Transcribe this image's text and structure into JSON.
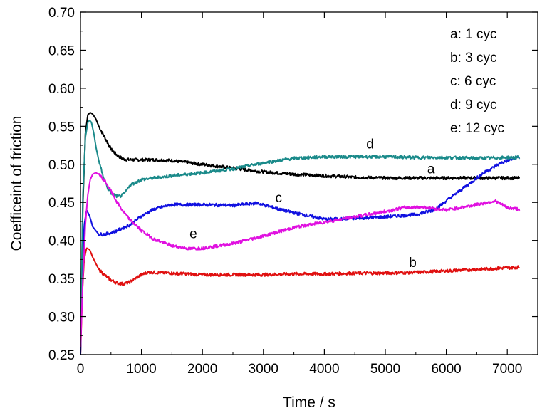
{
  "chart_data": {
    "type": "line",
    "title": "",
    "xlabel": "Time / s",
    "ylabel": "Coefficeint of friction",
    "xlim": [
      0,
      7500
    ],
    "ylim": [
      0.25,
      0.7
    ],
    "xticks": [
      0,
      1000,
      2000,
      3000,
      4000,
      5000,
      6000,
      7000
    ],
    "yticks": [
      0.25,
      0.3,
      0.35,
      0.4,
      0.45,
      0.5,
      0.55,
      0.6,
      0.65,
      0.7
    ],
    "xtick_labels": [
      "0",
      "1000",
      "2000",
      "3000",
      "4000",
      "5000",
      "6000",
      "7000"
    ],
    "ytick_labels": [
      "0.25",
      "0.30",
      "0.35",
      "0.40",
      "0.45",
      "0.50",
      "0.55",
      "0.60",
      "0.65",
      "0.70"
    ],
    "grid": false,
    "legend_position": "top-right",
    "legend": [
      {
        "text": "a: 1 cyc"
      },
      {
        "text": "b: 3 cyc"
      },
      {
        "text": "c: 6 cyc"
      },
      {
        "text": "d: 9 cyc"
      },
      {
        "text": "e: 12 cyc"
      }
    ],
    "series": [
      {
        "label": "a",
        "color": "#000000",
        "label_at": [
          5750,
          0.488
        ],
        "x": [
          0,
          40,
          80,
          120,
          160,
          200,
          250,
          300,
          400,
          500,
          600,
          700,
          800,
          1000,
          1200,
          1500,
          2000,
          2500,
          3000,
          3500,
          4000,
          4500,
          5000,
          5500,
          6000,
          6500,
          7000,
          7200
        ],
        "y": [
          0.25,
          0.45,
          0.54,
          0.565,
          0.568,
          0.566,
          0.56,
          0.55,
          0.535,
          0.52,
          0.512,
          0.507,
          0.506,
          0.506,
          0.506,
          0.505,
          0.5,
          0.495,
          0.49,
          0.487,
          0.485,
          0.483,
          0.482,
          0.482,
          0.482,
          0.482,
          0.482,
          0.482
        ]
      },
      {
        "label": "b",
        "color": "#e01010",
        "label_at": [
          5450,
          0.365
        ],
        "x": [
          0,
          30,
          60,
          100,
          150,
          200,
          300,
          400,
          500,
          600,
          700,
          800,
          900,
          1000,
          1100,
          1200,
          1500,
          2000,
          2500,
          3000,
          3500,
          4000,
          4500,
          5000,
          5500,
          6000,
          6500,
          7000,
          7200
        ],
        "y": [
          0.25,
          0.33,
          0.375,
          0.39,
          0.388,
          0.378,
          0.362,
          0.354,
          0.348,
          0.344,
          0.343,
          0.345,
          0.35,
          0.355,
          0.358,
          0.358,
          0.357,
          0.355,
          0.355,
          0.355,
          0.356,
          0.356,
          0.357,
          0.357,
          0.358,
          0.36,
          0.362,
          0.364,
          0.365
        ]
      },
      {
        "label": "c",
        "color": "#1010e0",
        "label_at": [
          3250,
          0.45
        ],
        "x": [
          0,
          30,
          60,
          100,
          150,
          200,
          300,
          400,
          500,
          600,
          800,
          1000,
          1200,
          1500,
          2000,
          2500,
          2900,
          3300,
          3700,
          4000,
          4200,
          4500,
          5000,
          5500,
          5800,
          6000,
          6300,
          6600,
          6900,
          7200
        ],
        "y": [
          0.25,
          0.36,
          0.42,
          0.44,
          0.432,
          0.418,
          0.408,
          0.408,
          0.41,
          0.413,
          0.42,
          0.432,
          0.441,
          0.447,
          0.447,
          0.446,
          0.449,
          0.44,
          0.433,
          0.428,
          0.428,
          0.429,
          0.431,
          0.434,
          0.44,
          0.452,
          0.47,
          0.488,
          0.502,
          0.51
        ]
      },
      {
        "label": "d",
        "color": "#1a8a8a",
        "label_at": [
          4750,
          0.521
        ],
        "x": [
          0,
          40,
          80,
          120,
          150,
          180,
          220,
          260,
          300,
          350,
          400,
          450,
          500,
          550,
          600,
          650,
          700,
          750,
          800,
          1000,
          1500,
          2000,
          2500,
          3000,
          3500,
          4000,
          4500,
          5000,
          5500,
          6000,
          6500,
          7000,
          7200
        ],
        "y": [
          0.26,
          0.46,
          0.535,
          0.555,
          0.558,
          0.555,
          0.54,
          0.52,
          0.505,
          0.49,
          0.478,
          0.468,
          0.462,
          0.46,
          0.458,
          0.458,
          0.46,
          0.465,
          0.472,
          0.48,
          0.485,
          0.489,
          0.494,
          0.502,
          0.508,
          0.51,
          0.51,
          0.51,
          0.509,
          0.509,
          0.508,
          0.509,
          0.509
        ]
      },
      {
        "label": "e",
        "color": "#e010e0",
        "label_at": [
          1850,
          0.403
        ],
        "x": [
          0,
          40,
          80,
          120,
          160,
          200,
          250,
          300,
          400,
          500,
          600,
          700,
          800,
          1000,
          1200,
          1500,
          1800,
          2000,
          2500,
          3000,
          3500,
          4000,
          4500,
          5000,
          5300,
          5600,
          6000,
          6500,
          6800,
          7000,
          7200
        ],
        "y": [
          0.26,
          0.35,
          0.42,
          0.46,
          0.48,
          0.487,
          0.489,
          0.487,
          0.478,
          0.465,
          0.45,
          0.438,
          0.428,
          0.413,
          0.402,
          0.393,
          0.389,
          0.39,
          0.396,
          0.406,
          0.417,
          0.424,
          0.431,
          0.438,
          0.443,
          0.444,
          0.44,
          0.447,
          0.452,
          0.443,
          0.441
        ]
      }
    ]
  }
}
